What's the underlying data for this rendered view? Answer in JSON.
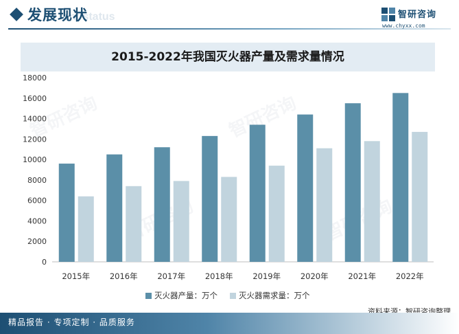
{
  "header": {
    "title": "发展现状",
    "subtitle": "ent status"
  },
  "brand": {
    "name": "智研咨询",
    "url": "www.chyxx.com"
  },
  "watermark": "智研咨询",
  "chart_data": {
    "type": "bar",
    "title": "2015-2022年我国灭火器产量及需求量情况",
    "categories": [
      "2015年",
      "2016年",
      "2017年",
      "2018年",
      "2019年",
      "2020年",
      "2021年",
      "2022年"
    ],
    "series": [
      {
        "name": "灭火器产量：万个",
        "color": "#5b8fa8",
        "values": [
          9600,
          10500,
          11200,
          12300,
          13400,
          14400,
          15500,
          16500
        ]
      },
      {
        "name": "灭火器需求量：万个",
        "color": "#c1d4de",
        "values": [
          6400,
          7400,
          7900,
          8300,
          9400,
          11100,
          11800,
          12700
        ]
      }
    ],
    "ylim": [
      0,
      18000
    ],
    "yticks": [
      0,
      2000,
      4000,
      6000,
      8000,
      10000,
      12000,
      14000,
      16000,
      18000
    ],
    "grid": false,
    "legend": "bottom-center"
  },
  "source": "资料来源：智研咨询整理",
  "footer": {
    "text": "精品报告 · 专项定制 · 品质服务"
  },
  "colors": {
    "brand": "#1d4f73",
    "title_band": "#e3ecf3"
  }
}
